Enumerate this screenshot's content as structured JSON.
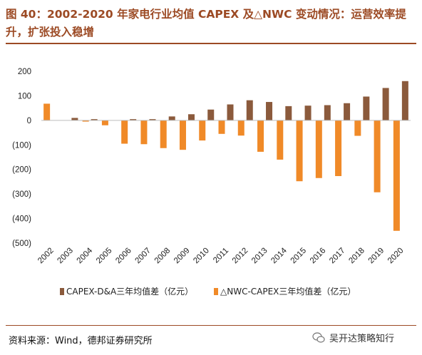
{
  "title": "图 40：2002-2020 年家电行业均值 CAPEX 及△NWC 变动情况：运营效率提升，扩张投入稳增",
  "source": "资料来源：Wind，德邦证券研究所",
  "watermark": "吴开达策略知行",
  "colors": {
    "capex": "#8B5A3C",
    "nwc": "#F08A28",
    "accent": "#9c4a24"
  },
  "chart_data": {
    "type": "bar",
    "categories": [
      "2002",
      "2003",
      "2004",
      "2005",
      "2006",
      "2007",
      "2008",
      "2009",
      "2010",
      "2011",
      "2012",
      "2013",
      "2014",
      "2015",
      "2016",
      "2017",
      "2018",
      "2019",
      "2020"
    ],
    "series": [
      {
        "name": "CAPEX-D&A三年均值差（亿元）",
        "values": [
          0,
          10,
          5,
          0,
          5,
          5,
          16,
          25,
          44,
          65,
          82,
          75,
          58,
          60,
          62,
          70,
          97,
          132,
          160
        ]
      },
      {
        "name": "△NWC-CAPEX三年均值差（亿元）",
        "values": [
          68,
          0,
          -5,
          -20,
          -95,
          -97,
          -113,
          -120,
          -82,
          -55,
          -62,
          -128,
          -160,
          -248,
          -235,
          -227,
          -63,
          -293,
          -450
        ]
      }
    ],
    "ylim": [
      -500,
      200
    ],
    "yticks": [
      200,
      100,
      0,
      -100,
      -200,
      -300,
      -400,
      -500
    ],
    "ytick_labels": [
      "200",
      "100",
      "0",
      "(100)",
      "(200)",
      "(300)",
      "(400)",
      "(500)"
    ],
    "legend_position": "bottom"
  }
}
